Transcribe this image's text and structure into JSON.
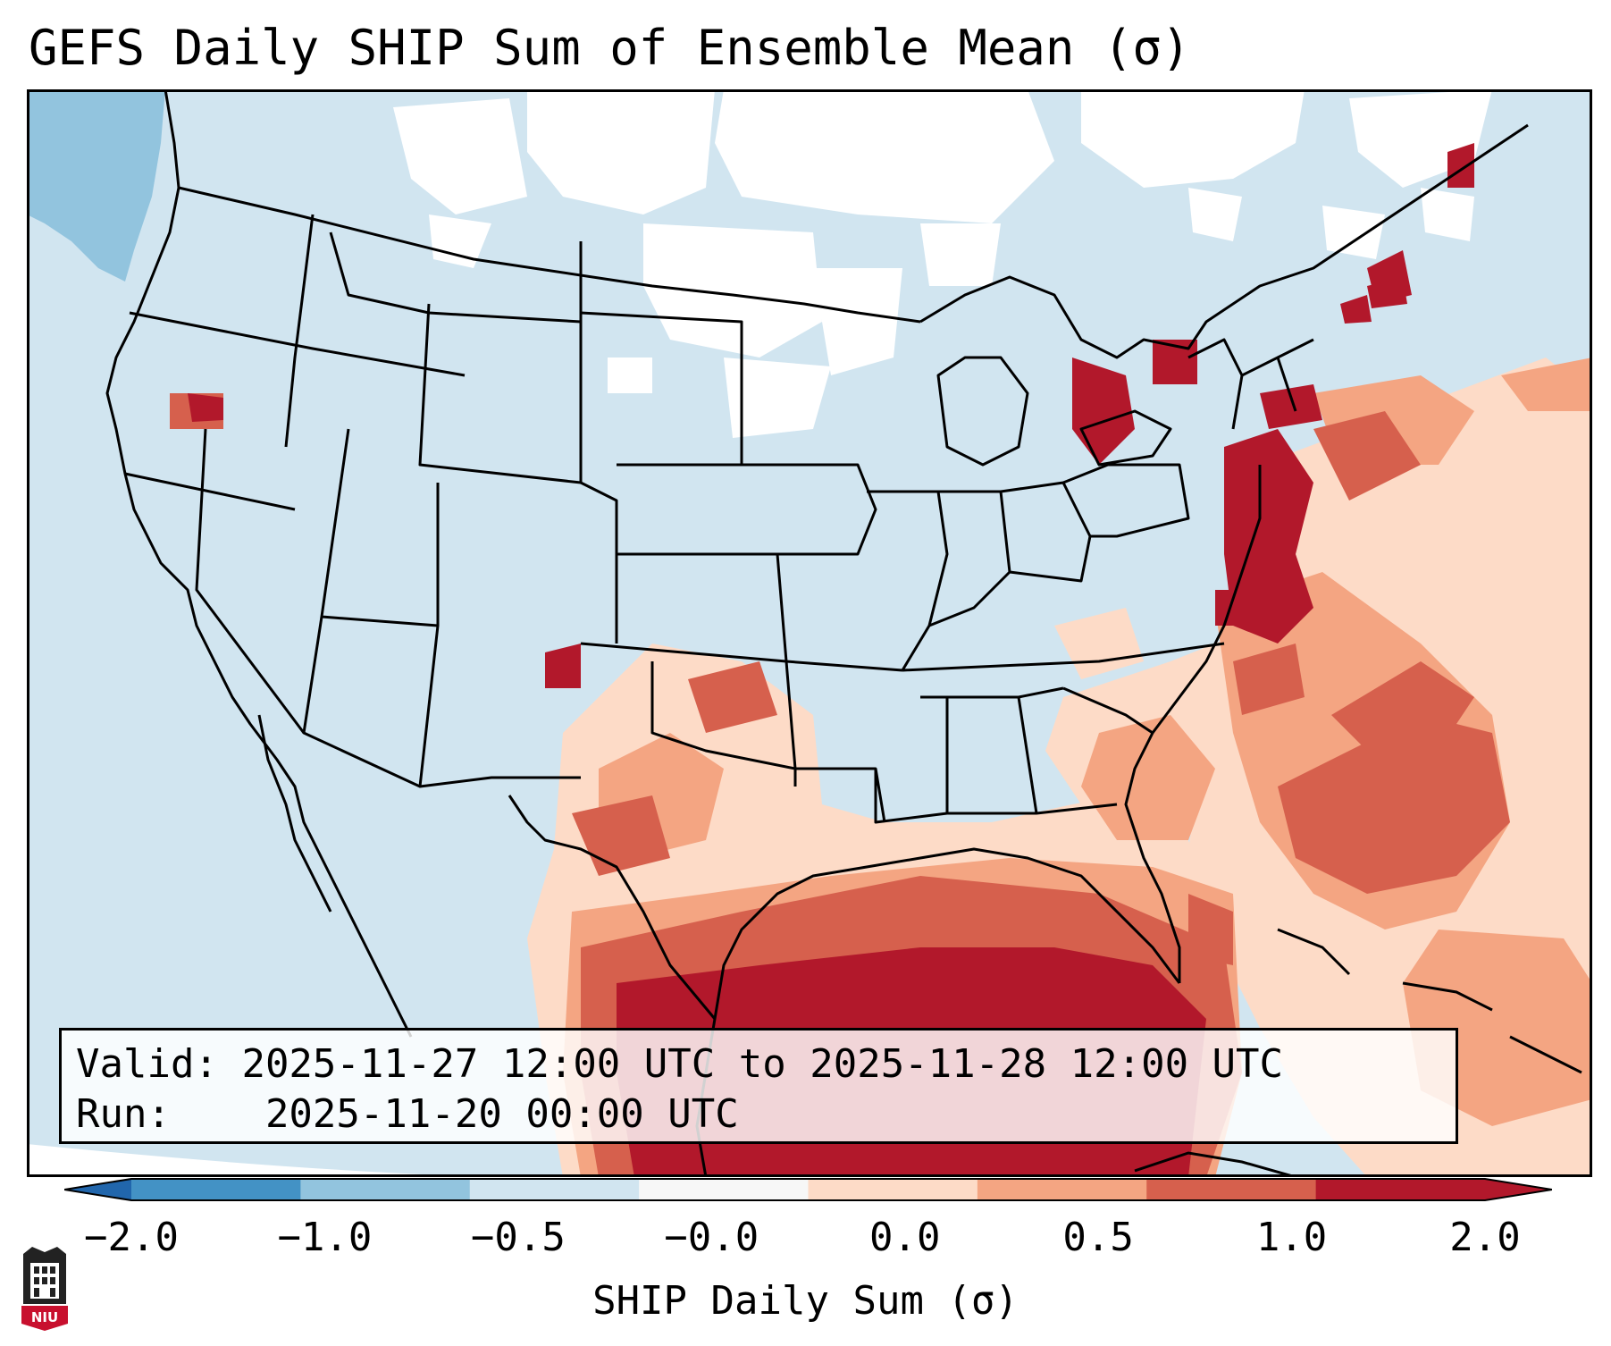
{
  "title": "GEFS Daily SHIP Sum of Ensemble Mean (σ)",
  "info": {
    "valid_label": "Valid:",
    "valid_text": "2025-11-27 12:00 UTC to 2025-11-28 12:00 UTC",
    "run_label": "Run:",
    "run_text": "2025-11-20 00:00 UTC"
  },
  "colorbar": {
    "label": "SHIP Daily Sum (σ)",
    "ticks": [
      "−2.0",
      "−1.0",
      "−0.5",
      "−0.0",
      "0.0",
      "0.5",
      "1.0",
      "2.0"
    ],
    "colors": [
      "#4392c5",
      "#92c4de",
      "#d1e5f0",
      "#f7f7f7",
      "#fddbc7",
      "#f4a582",
      "#d6604d",
      "#b2182b"
    ],
    "extend": "both"
  },
  "logo": {
    "text": "NIU"
  },
  "colors": {
    "ocean_background": "#d1e5f0",
    "neutral": "#ffffff",
    "border_lines": "#000000"
  }
}
